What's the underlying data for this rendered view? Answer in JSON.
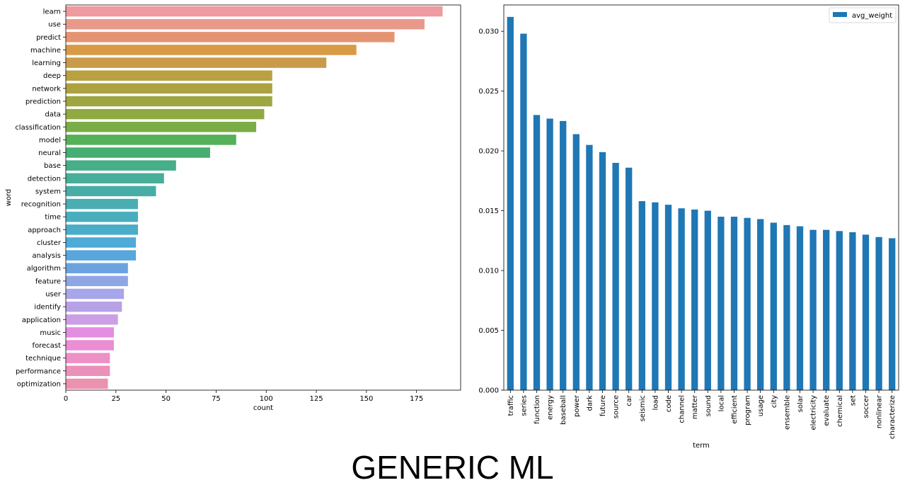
{
  "caption": "GENERIC ML",
  "chart_data": [
    {
      "type": "bar",
      "orientation": "horizontal",
      "xlabel": "count",
      "ylabel": "word",
      "xlim": [
        0,
        197
      ],
      "xticks": [
        0,
        25,
        50,
        75,
        100,
        125,
        150,
        175
      ],
      "grid": false,
      "categories": [
        "learn",
        "use",
        "predict",
        "machine",
        "learning",
        "deep",
        "network",
        "prediction",
        "data",
        "classification",
        "model",
        "neural",
        "base",
        "detection",
        "system",
        "recognition",
        "time",
        "approach",
        "cluster",
        "analysis",
        "algorithm",
        "feature",
        "user",
        "identify",
        "application",
        "music",
        "forecast",
        "technique",
        "performance",
        "optimization"
      ],
      "values": [
        188,
        179,
        164,
        145,
        130,
        103,
        103,
        103,
        99,
        95,
        85,
        72,
        55,
        49,
        45,
        36,
        36,
        36,
        35,
        35,
        31,
        31,
        29,
        28,
        26,
        24,
        24,
        22,
        22,
        21
      ],
      "colors": [
        "#ee9aa0",
        "#e9998a",
        "#e59471",
        "#d99a45",
        "#c99a4a",
        "#b9a041",
        "#aca23f",
        "#9ea642",
        "#90aa42",
        "#7aad46",
        "#55b057",
        "#46ae72",
        "#46ae88",
        "#47ae99",
        "#48ada6",
        "#4aadb1",
        "#4aadbd",
        "#4bacc9",
        "#4eaad6",
        "#57a6dc",
        "#6ba3e0",
        "#8ea6e6",
        "#a8a6ea",
        "#b7a2e8",
        "#cc9ee6",
        "#e38ee2",
        "#eb8ed3",
        "#ec90c6",
        "#ea90ba",
        "#ea92ae"
      ]
    },
    {
      "type": "bar",
      "xlabel": "term",
      "ylabel": "",
      "ylim": [
        0,
        0.0322
      ],
      "yticks": [
        "0.000",
        "0.005",
        "0.010",
        "0.015",
        "0.020",
        "0.025",
        "0.030"
      ],
      "grid": false,
      "legend": "top-right",
      "color": "#1f77b4",
      "series": [
        {
          "name": "avg_weight",
          "values": [
            0.0312,
            0.0298,
            0.023,
            0.0227,
            0.0225,
            0.0214,
            0.0205,
            0.0199,
            0.019,
            0.0186,
            0.0158,
            0.0157,
            0.0155,
            0.0152,
            0.0151,
            0.015,
            0.0145,
            0.0145,
            0.0144,
            0.0143,
            0.014,
            0.0138,
            0.0137,
            0.0134,
            0.0134,
            0.0133,
            0.0132,
            0.013,
            0.0128,
            0.0127
          ]
        }
      ],
      "categories": [
        "traffic",
        "series",
        "function",
        "energy",
        "baseball",
        "power",
        "dark",
        "future",
        "source",
        "car",
        "seismic",
        "load",
        "code",
        "channel",
        "matter",
        "sound",
        "local",
        "efficient",
        "program",
        "usage",
        "city",
        "ensemble",
        "solar",
        "electricity",
        "evaluate",
        "chemical",
        "set",
        "soccer",
        "nonlinear",
        "characterize"
      ]
    }
  ]
}
